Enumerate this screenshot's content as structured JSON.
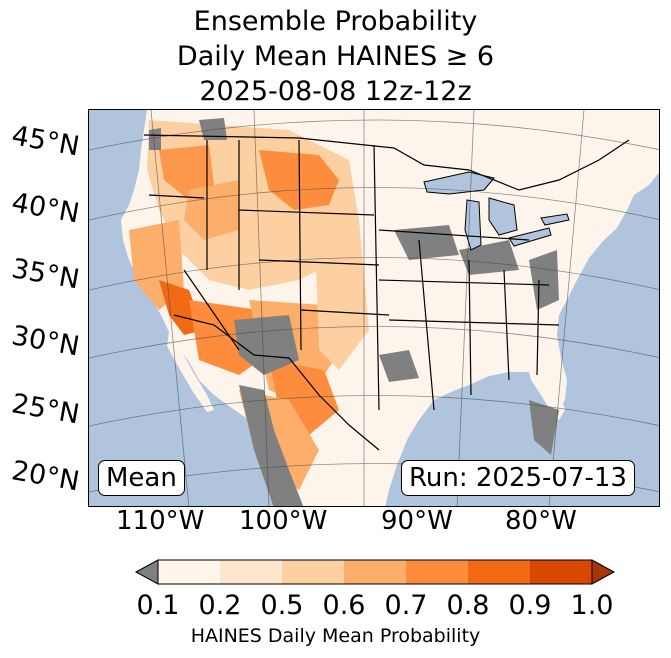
{
  "title": {
    "line1": "Ensemble Probability",
    "line2": "Daily Mean HAINES ≥ 6",
    "line3": "2025-08-08 12z-12z"
  },
  "map": {
    "lat_labels": [
      "45°N",
      "40°N",
      "35°N",
      "30°N",
      "25°N",
      "20°N"
    ],
    "lon_labels": [
      "110°W",
      "100°W",
      "90°W",
      "80°W"
    ],
    "ocean_color": "#b0c4de",
    "land_color": "#fdf5ec",
    "missing_color": "#808080",
    "lake_color": "#b0c4de"
  },
  "badges": {
    "mean": "Mean",
    "run": "Run: 2025-07-13"
  },
  "colorbar": {
    "ticks": [
      "0.1",
      "0.2",
      "0.5",
      "0.6",
      "0.7",
      "0.8",
      "0.9",
      "1.0"
    ],
    "colors": [
      "#fff5eb",
      "#fee6ce",
      "#fdd0a2",
      "#fdae6b",
      "#fd8d3c",
      "#f16913",
      "#d94801"
    ],
    "under_color": "#808080",
    "over_color": "#a63603",
    "label": "HAINES Daily Mean Probability"
  }
}
